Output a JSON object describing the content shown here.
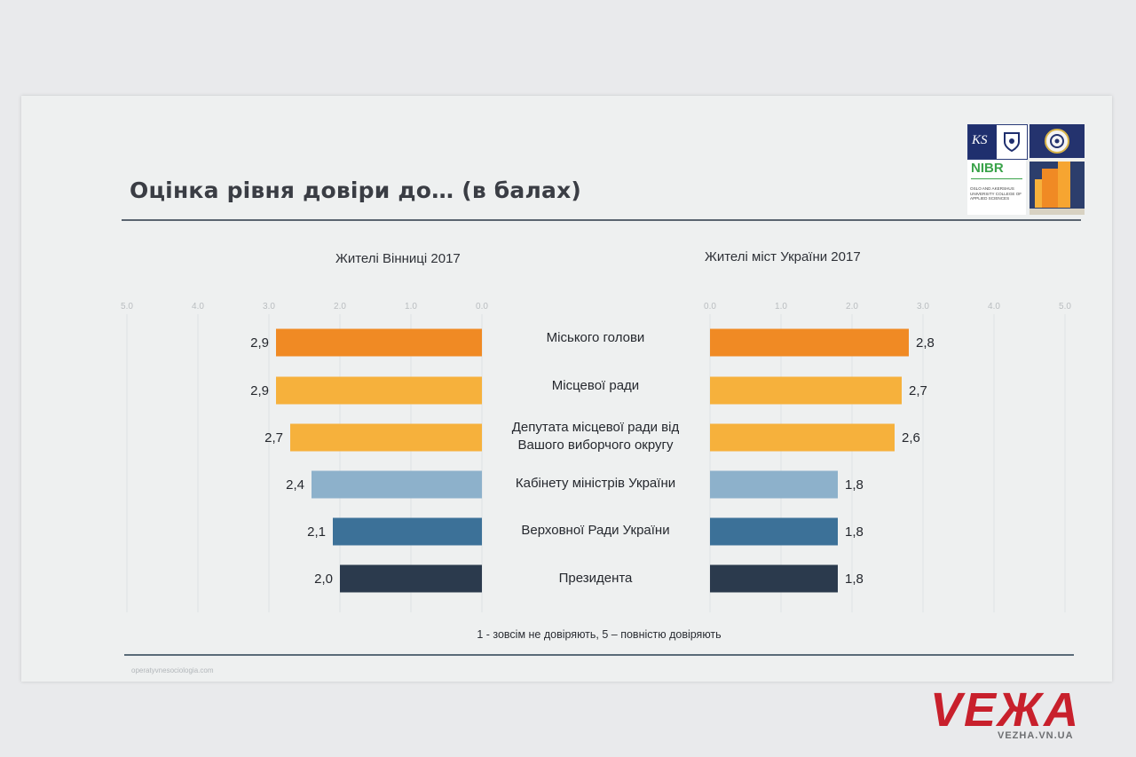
{
  "slide": {
    "title": "Оцінка рівня довіри до… (в балах)",
    "footnote": "1 - зовсім не довіряють,   5 – повністю довіряють",
    "source_url": "operatyvnesociologia.com"
  },
  "logos": {
    "ks_text": "KS",
    "nibr_text": "NIBR",
    "nibr_caption": "OSLO AND AKERSHUS UNIVERSITY COLLEGE OF APPLIED SCIENCES"
  },
  "watermark": {
    "brand": "VEЖA",
    "url": "VEZHA.VN.UA"
  },
  "colors": {
    "bar_colors": [
      "#f08a24",
      "#f6b13c",
      "#f6b13c",
      "#8db1cb",
      "#3c7198",
      "#2b3a4d"
    ],
    "background": "#eef0f0",
    "watermark_red": "#c8202c"
  },
  "chart_data": [
    {
      "type": "bar",
      "orientation": "horizontal",
      "direction": "right-to-left",
      "title": "Жителі Вінниці 2017",
      "xlim": [
        0,
        5
      ],
      "ticks": [
        "0.0",
        "1.0",
        "2.0",
        "3.0",
        "4.0",
        "5.0"
      ],
      "tick_values": [
        0,
        1,
        2,
        3,
        4,
        5
      ],
      "categories": [
        "Міського голови",
        "Місцевої ради",
        "Депутата місцевої ради від Вашого виборчого округу",
        "Кабінету міністрів України",
        "Верховної Ради України",
        "Президента"
      ],
      "values": [
        2.9,
        2.9,
        2.7,
        2.4,
        2.1,
        2.0
      ],
      "value_labels": [
        "2,9",
        "2,9",
        "2,7",
        "2,4",
        "2,1",
        "2,0"
      ],
      "grid": true
    },
    {
      "type": "bar",
      "orientation": "horizontal",
      "direction": "left-to-right",
      "title": "Жителі міст України 2017",
      "xlim": [
        0,
        5
      ],
      "ticks": [
        "0.0",
        "1.0",
        "2.0",
        "3.0",
        "4.0",
        "5.0"
      ],
      "tick_values": [
        0,
        1,
        2,
        3,
        4,
        5
      ],
      "categories": [
        "Міського голови",
        "Місцевої ради",
        "Депутата місцевої ради від Вашого виборчого округу",
        "Кабінету міністрів України",
        "Верховної Ради України",
        "Президента"
      ],
      "values": [
        2.8,
        2.7,
        2.6,
        1.8,
        1.8,
        1.8
      ],
      "value_labels": [
        "2,8",
        "2,7",
        "2,6",
        "1,8",
        "1,8",
        "1,8"
      ],
      "grid": true
    }
  ],
  "category_labels": [
    [
      "Міського голови"
    ],
    [
      "Місцевої ради"
    ],
    [
      "Депутата місцевої ради від",
      "Вашого виборчого округу"
    ],
    [
      "Кабінету міністрів України"
    ],
    [
      "Верховної Ради України"
    ],
    [
      "Президента"
    ]
  ]
}
